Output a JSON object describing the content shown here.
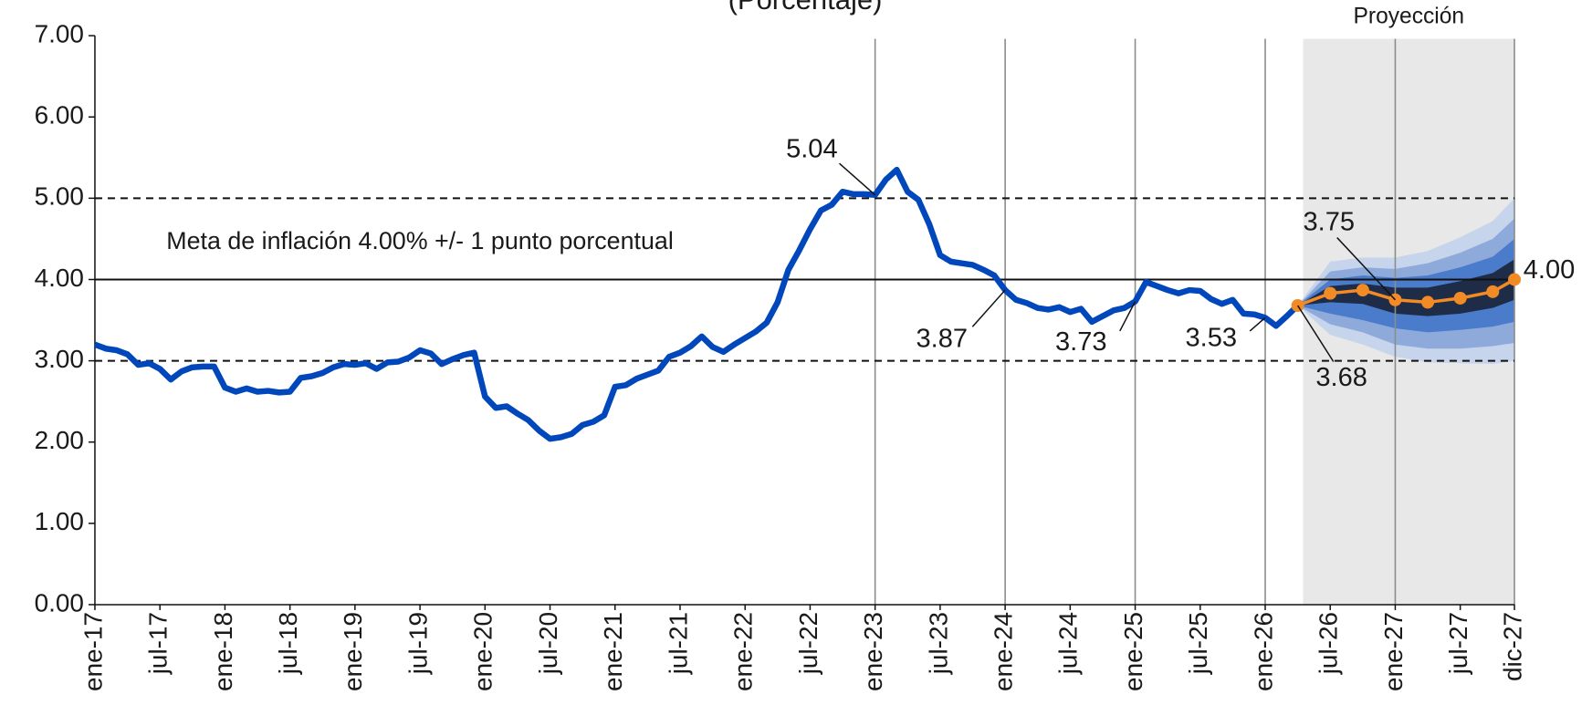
{
  "chart_data": {
    "type": "line",
    "subtitle": "(Porcentaje)",
    "projection_label": "Proyección",
    "target_label": "Meta de inflación 4.00% +/- 1 punto porcentual",
    "categories": [
      "ene-17",
      "jul-17",
      "ene-18",
      "jul-18",
      "ene-19",
      "jul-19",
      "ene-20",
      "jul-20",
      "ene-21",
      "jul-21",
      "ene-22",
      "jul-22",
      "ene-23",
      "jul-23",
      "ene-24",
      "jul-24",
      "ene-25",
      "jul-25",
      "ene-26",
      "jul-26",
      "ene-27",
      "jul-27",
      "dic-27"
    ],
    "ylim": [
      0,
      7
    ],
    "yticks": [
      {
        "value": 0,
        "label": "0.00"
      },
      {
        "value": 1,
        "label": "1.00"
      },
      {
        "value": 2,
        "label": "2.00"
      },
      {
        "value": 3,
        "label": "3.00"
      },
      {
        "value": 4,
        "label": "4.00"
      },
      {
        "value": 5,
        "label": "5.00"
      },
      {
        "value": 6,
        "label": "6.00"
      },
      {
        "value": 7,
        "label": "7.00"
      }
    ],
    "ref_lines": [
      {
        "value": 5,
        "style": "dashed"
      },
      {
        "value": 4,
        "style": "solid"
      },
      {
        "value": 3,
        "style": "dashed"
      }
    ],
    "vlines": [
      "ene-23",
      "ene-24",
      "ene-25",
      "ene-26",
      "ene-27",
      "dic-27"
    ],
    "projection_range": [
      "abr-26",
      "dic-27"
    ],
    "projection_shade": "#e8e8e8",
    "bands": [
      {
        "color": "#c6d4ec",
        "x": [
          "abr-26",
          "jul-26",
          "oct-26",
          "ene-27",
          "abr-27",
          "jul-27",
          "oct-27",
          "dic-27"
        ],
        "upper": [
          3.68,
          4.22,
          4.27,
          4.27,
          4.35,
          4.52,
          4.72,
          5.0
        ],
        "lower": [
          3.68,
          3.32,
          3.2,
          3.05,
          2.98,
          2.97,
          2.96,
          3.0
        ]
      },
      {
        "color": "#8eaadb",
        "x": [
          "abr-26",
          "jul-26",
          "oct-26",
          "ene-27",
          "abr-27",
          "jul-27",
          "oct-27",
          "dic-27"
        ],
        "upper": [
          3.68,
          4.1,
          4.15,
          4.13,
          4.2,
          4.33,
          4.5,
          4.75
        ],
        "lower": [
          3.68,
          3.45,
          3.35,
          3.2,
          3.15,
          3.15,
          3.18,
          3.22
        ]
      },
      {
        "color": "#4a7ccb",
        "x": [
          "abr-26",
          "jul-26",
          "oct-26",
          "ene-27",
          "abr-27",
          "jul-27",
          "oct-27",
          "dic-27"
        ],
        "upper": [
          3.68,
          4.0,
          4.05,
          4.02,
          4.05,
          4.15,
          4.28,
          4.5
        ],
        "lower": [
          3.68,
          3.58,
          3.5,
          3.4,
          3.35,
          3.38,
          3.42,
          3.48
        ]
      },
      {
        "color": "#1f2c48",
        "x": [
          "abr-26",
          "jul-26",
          "oct-26",
          "ene-27",
          "abr-27",
          "jul-27",
          "oct-27",
          "dic-27"
        ],
        "upper": [
          3.68,
          3.92,
          3.95,
          3.9,
          3.9,
          3.98,
          4.08,
          4.25
        ],
        "lower": [
          3.68,
          3.72,
          3.7,
          3.58,
          3.55,
          3.58,
          3.65,
          3.75
        ]
      }
    ],
    "series": [
      {
        "color": "#0047bb",
        "markers": false,
        "x": [
          "ene-17",
          "feb-17",
          "mar-17",
          "abr-17",
          "may-17",
          "jun-17",
          "jul-17",
          "ago-17",
          "sep-17",
          "oct-17",
          "nov-17",
          "dic-17",
          "ene-18",
          "feb-18",
          "mar-18",
          "abr-18",
          "may-18",
          "jun-18",
          "jul-18",
          "ago-18",
          "sep-18",
          "oct-18",
          "nov-18",
          "dic-18",
          "ene-19",
          "feb-19",
          "mar-19",
          "abr-19",
          "may-19",
          "jun-19",
          "jul-19",
          "ago-19",
          "sep-19",
          "oct-19",
          "nov-19",
          "dic-19",
          "ene-20",
          "feb-20",
          "mar-20",
          "abr-20",
          "may-20",
          "jun-20",
          "jul-20",
          "ago-20",
          "sep-20",
          "oct-20",
          "nov-20",
          "dic-20",
          "ene-21",
          "feb-21",
          "mar-21",
          "abr-21",
          "may-21",
          "jun-21",
          "jul-21",
          "ago-21",
          "sep-21",
          "oct-21",
          "nov-21",
          "dic-21",
          "ene-22",
          "feb-22",
          "mar-22",
          "abr-22",
          "may-22",
          "jun-22",
          "jul-22",
          "ago-22",
          "sep-22",
          "oct-22",
          "nov-22",
          "dic-22",
          "ene-23",
          "feb-23",
          "mar-23",
          "abr-23",
          "may-23",
          "jun-23",
          "jul-23",
          "ago-23",
          "sep-23",
          "oct-23",
          "nov-23",
          "dic-23",
          "ene-24",
          "feb-24",
          "mar-24",
          "abr-24",
          "may-24",
          "jun-24",
          "jul-24",
          "ago-24",
          "sep-24",
          "oct-24",
          "nov-24",
          "dic-24",
          "ene-25",
          "feb-25",
          "mar-25",
          "abr-25",
          "may-25",
          "jun-25",
          "jul-25",
          "ago-25",
          "sep-25",
          "oct-25",
          "nov-25",
          "dic-25",
          "ene-26",
          "feb-26",
          "mar-26",
          "abr-26"
        ],
        "values": [
          3.2,
          3.15,
          3.13,
          3.08,
          2.95,
          2.97,
          2.9,
          2.77,
          2.87,
          2.92,
          2.93,
          2.93,
          2.67,
          2.62,
          2.66,
          2.62,
          2.63,
          2.61,
          2.62,
          2.79,
          2.81,
          2.85,
          2.92,
          2.96,
          2.95,
          2.97,
          2.9,
          2.98,
          2.99,
          3.04,
          3.13,
          3.09,
          2.96,
          3.02,
          3.07,
          3.1,
          2.56,
          2.42,
          2.44,
          2.35,
          2.27,
          2.14,
          2.04,
          2.06,
          2.1,
          2.21,
          2.25,
          2.33,
          2.68,
          2.7,
          2.78,
          2.83,
          2.88,
          3.05,
          3.1,
          3.18,
          3.3,
          3.17,
          3.11,
          3.2,
          3.28,
          3.36,
          3.47,
          3.72,
          4.12,
          4.36,
          4.62,
          4.85,
          4.92,
          5.08,
          5.05,
          5.05,
          5.04,
          5.23,
          5.35,
          5.08,
          4.98,
          4.68,
          4.3,
          4.22,
          4.2,
          4.18,
          4.12,
          4.05,
          3.87,
          3.75,
          3.71,
          3.65,
          3.63,
          3.66,
          3.6,
          3.64,
          3.48,
          3.55,
          3.62,
          3.65,
          3.73,
          3.97,
          3.92,
          3.87,
          3.83,
          3.87,
          3.86,
          3.76,
          3.7,
          3.75,
          3.58,
          3.57,
          3.53,
          3.43,
          3.55,
          3.68
        ],
        "value_labels": [
          null,
          null,
          null,
          null,
          null,
          null,
          null,
          null,
          null,
          null,
          null,
          null,
          null,
          null,
          null,
          null,
          null,
          null,
          null,
          null,
          null,
          null,
          null,
          null,
          null,
          null,
          null,
          null,
          null,
          null,
          null,
          null,
          null,
          null,
          null,
          null,
          null,
          null,
          null,
          null,
          null,
          null,
          null,
          null,
          null,
          null,
          null,
          null,
          null,
          null,
          null,
          null,
          null,
          null,
          null,
          null,
          null,
          null,
          null,
          null,
          null,
          null,
          null,
          null,
          null,
          null,
          null,
          null,
          null,
          null,
          null,
          null,
          "5.04",
          null,
          null,
          null,
          null,
          null,
          null,
          null,
          null,
          null,
          null,
          null,
          "3.87",
          null,
          null,
          null,
          null,
          null,
          null,
          null,
          null,
          null,
          null,
          null,
          "3.73",
          null,
          null,
          null,
          null,
          null,
          null,
          null,
          null,
          null,
          null,
          null,
          "3.53",
          null,
          null,
          null
        ]
      },
      {
        "color": "#f28a26",
        "markers": true,
        "x": [
          "abr-26",
          "jul-26",
          "oct-26",
          "ene-27",
          "abr-27",
          "jul-27",
          "oct-27",
          "dic-27"
        ],
        "values": [
          3.68,
          3.83,
          3.87,
          3.75,
          3.72,
          3.77,
          3.85,
          4.0
        ],
        "value_labels": [
          "3.68",
          null,
          null,
          "3.75",
          null,
          null,
          null,
          "4.00"
        ]
      }
    ]
  }
}
